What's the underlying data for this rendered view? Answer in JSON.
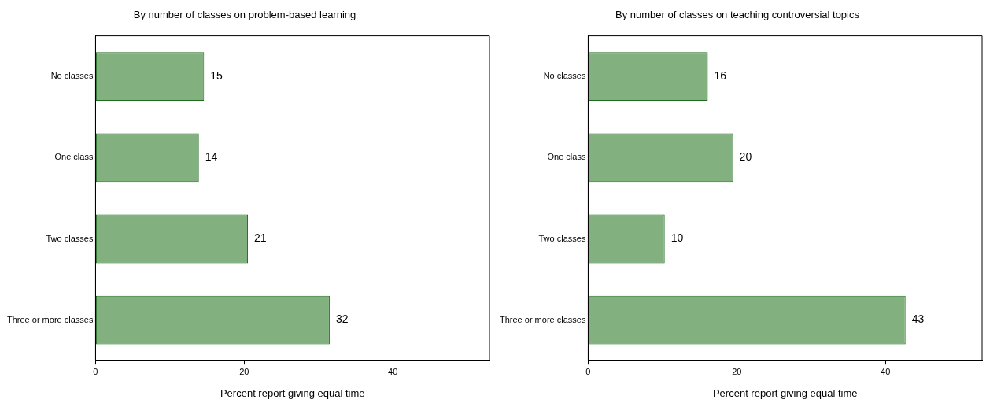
{
  "chart_data": [
    {
      "type": "bar",
      "orientation": "horizontal",
      "title": "By number of classes on problem-based learning",
      "xlabel": "Percent report giving equal time",
      "categories": [
        "No classes",
        "One class",
        "Two classes",
        "Three or more classes"
      ],
      "values": [
        14.6,
        13.9,
        20.5,
        31.5
      ],
      "value_labels": [
        "15",
        "14",
        "21",
        "32"
      ],
      "color": "#82b17f",
      "xlim": [
        0,
        53
      ],
      "xticks": [
        0,
        20,
        40
      ],
      "grid": false,
      "legend": false
    },
    {
      "type": "bar",
      "orientation": "horizontal",
      "title": "By number of classes on teaching controversial topics",
      "xlabel": "Percent report giving equal time",
      "categories": [
        "No classes",
        "One class",
        "Two classes",
        "Three or more classes"
      ],
      "values": [
        16.1,
        19.5,
        10.3,
        42.7
      ],
      "value_labels": [
        "16",
        "20",
        "10",
        "43"
      ],
      "color": "#82b17f",
      "xlim": [
        0,
        53
      ],
      "xticks": [
        0,
        20,
        40
      ],
      "grid": false,
      "legend": false
    }
  ]
}
